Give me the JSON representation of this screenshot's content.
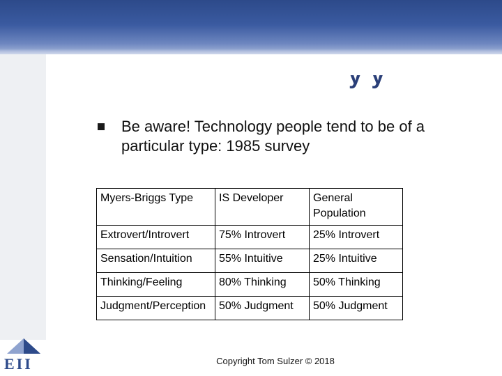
{
  "slide": {
    "title_fragment": "y  y",
    "bullet_text": "Be aware! Technology people tend to be of a particular type: 1985 survey",
    "logo_text": "EII",
    "copyright": "Copyright Tom Sulzer © 2018"
  },
  "table": {
    "headers": [
      "Myers-Briggs Type",
      "IS Developer",
      "General Population"
    ],
    "rows": [
      [
        "Extrovert/Introvert",
        "75% Introvert",
        "25% Introvert"
      ],
      [
        "Sensation/Intuition",
        "55% Intuitive",
        "25% Intuitive"
      ],
      [
        "Thinking/Feeling",
        "80% Thinking",
        "50% Thinking"
      ],
      [
        "Judgment/Perception",
        "50% Judgment",
        "50% Judgment"
      ]
    ]
  },
  "colors": {
    "header_band": "#3a5aa0",
    "logo": "#2d4a8a",
    "text": "#111111"
  },
  "icons": {
    "bullet": "square-bullet-icon",
    "logo": "pyramid-logo-icon"
  }
}
